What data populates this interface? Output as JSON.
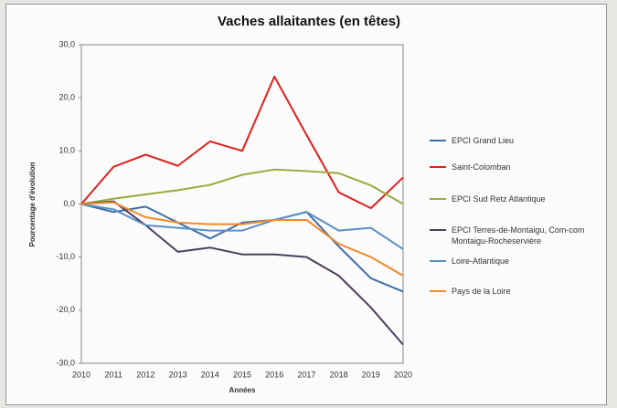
{
  "chart_data": {
    "type": "line",
    "title": "Vaches allaitantes (en têtes)",
    "y_label": "Pourcentage d'évolution",
    "x_label": "Années",
    "categories": [
      "2010",
      "2011",
      "2012",
      "2013",
      "2014",
      "2015",
      "2016",
      "2017",
      "2018",
      "2019",
      "2020"
    ],
    "ylim": [
      -30,
      30
    ],
    "yticks": [
      {
        "value": -30,
        "label": "-30,0"
      },
      {
        "value": -20,
        "label": "-20,0"
      },
      {
        "value": -10,
        "label": "-10,0"
      },
      {
        "value": 0,
        "label": "0,0"
      },
      {
        "value": 10,
        "label": "10,0"
      },
      {
        "value": 20,
        "label": "20,0"
      },
      {
        "value": 30,
        "label": "30,0"
      }
    ],
    "grid": false,
    "series": [
      {
        "name": "EPCI Grand Lieu",
        "color": "#3f6fa8",
        "values": [
          0,
          -1.5,
          -0.5,
          -3.5,
          -6.5,
          -3.5,
          -3,
          -1.5,
          -8,
          -14,
          -16.5
        ]
      },
      {
        "name": "Saint-Colomban",
        "color": "#e0201b",
        "values": [
          0,
          7,
          9.3,
          7.2,
          11.8,
          10,
          24,
          13,
          2.2,
          -0.8,
          5
        ]
      },
      {
        "name": "EPCI Sud Retz Atlantique",
        "color": "#9aaa3c",
        "values": [
          0,
          1,
          1.8,
          2.6,
          3.6,
          5.5,
          6.5,
          6.2,
          5.8,
          3.5,
          0
        ]
      },
      {
        "name": "EPCI Terres-de-Montaigu, Com-com Montaigu-Rocheservière",
        "color": "#4d3f5c",
        "values": [
          0,
          0.5,
          -4,
          -9,
          -8.2,
          -9.5,
          -9.5,
          -10,
          -13.5,
          -19.5,
          -26.5
        ]
      },
      {
        "name": "Loire-Atlantique",
        "color": "#5a8fc4",
        "values": [
          0,
          -1,
          -4,
          -4.5,
          -5,
          -5,
          -3,
          -1.5,
          -5,
          -4.5,
          -8.5
        ]
      },
      {
        "name": "Pays de la Loire",
        "color": "#f0892a",
        "values": [
          0,
          0.3,
          -2.5,
          -3.5,
          -3.8,
          -3.8,
          -3,
          -3,
          -7.5,
          -10,
          -13.5
        ]
      }
    ]
  }
}
